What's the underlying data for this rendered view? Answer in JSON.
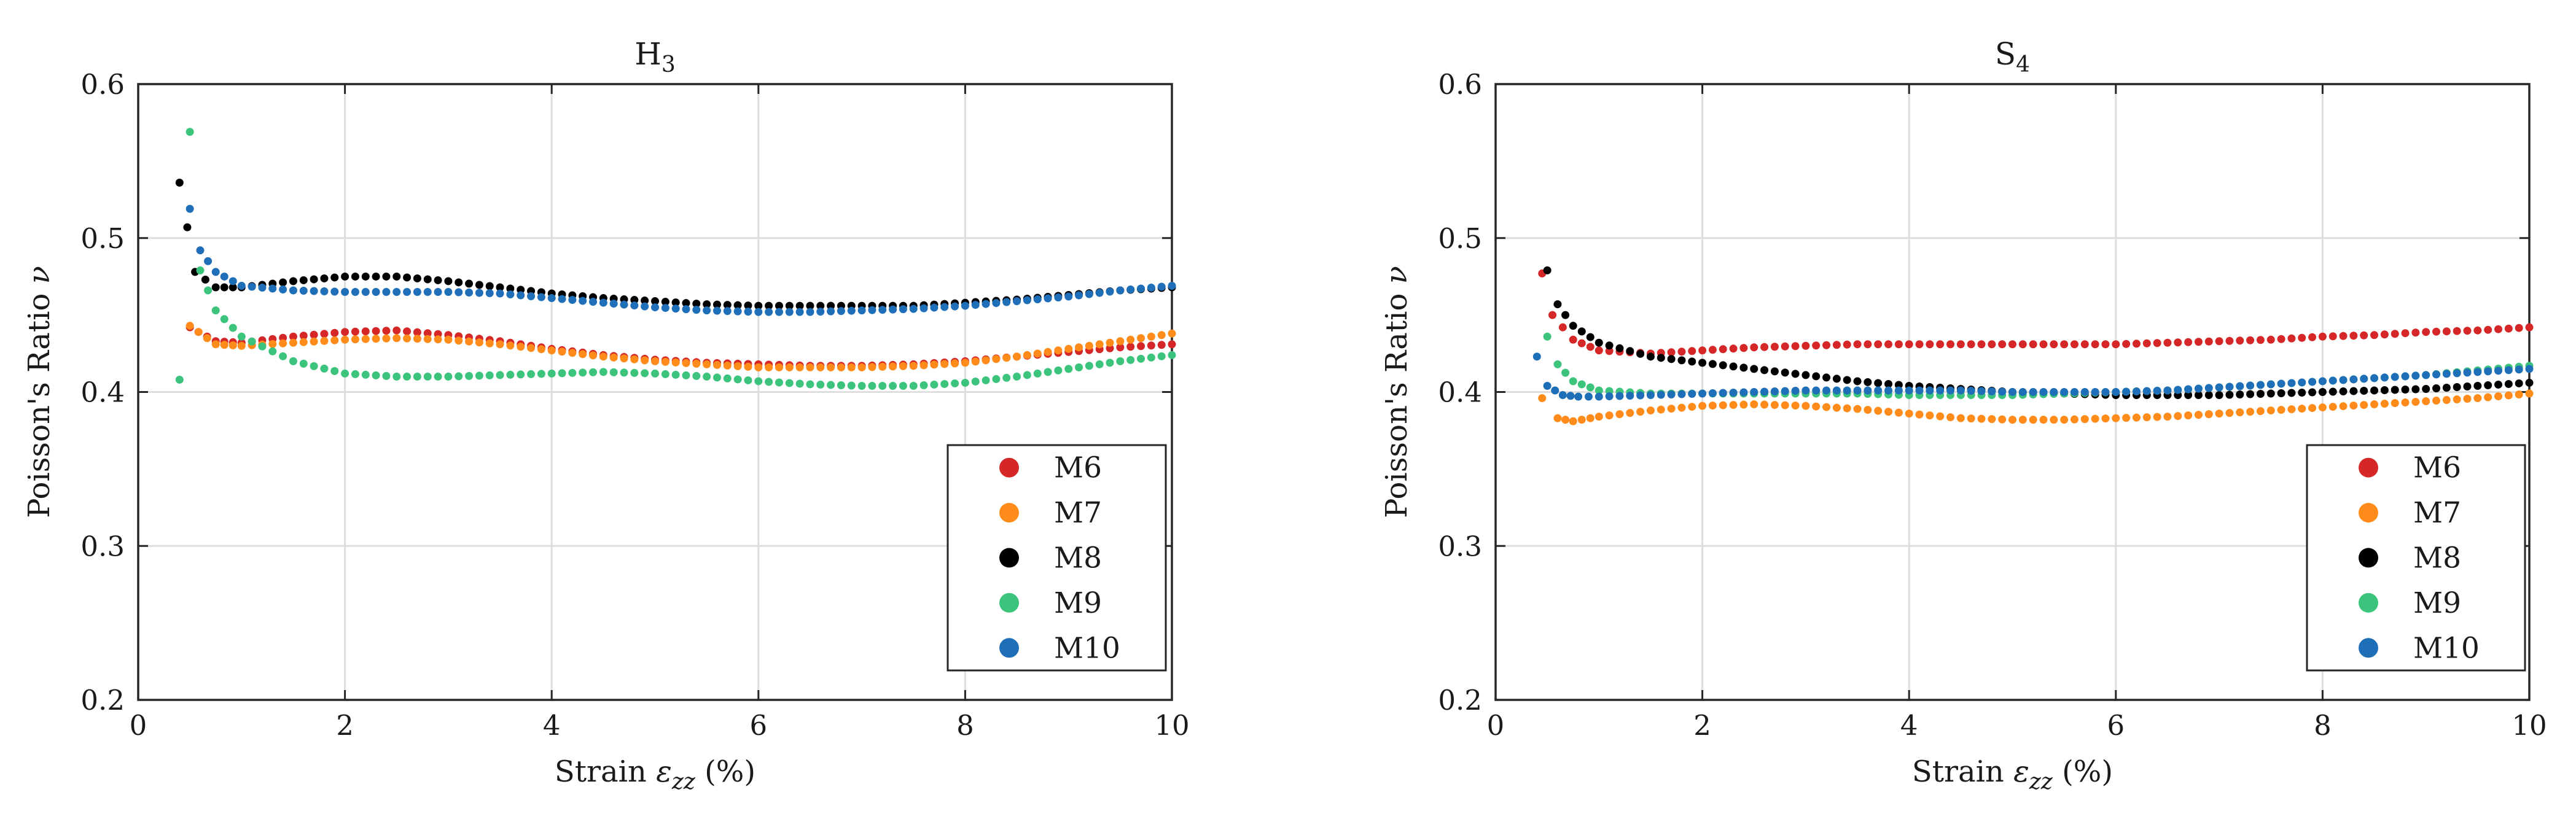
{
  "chart_data": [
    {
      "type": "scatter",
      "title_main": "H",
      "title_sub": "3",
      "xlabel_prefix": "Strain ",
      "xlabel_symbol": "ε",
      "xlabel_subscript": "zz",
      "xlabel_suffix": " (%)",
      "ylabel_prefix": "Poisson's Ratio ",
      "ylabel_symbol": "ν",
      "xlim": [
        0,
        10
      ],
      "ylim": [
        0.2,
        0.6
      ],
      "xticks": [
        "0",
        "2",
        "4",
        "6",
        "8",
        "10"
      ],
      "yticks": [
        "0.2",
        "0.3",
        "0.4",
        "0.5",
        "0.6"
      ],
      "grid": true,
      "legend_position": "bottom-right",
      "series": [
        {
          "name": "M6",
          "color": "#d62728",
          "x": [
            0.5,
            0.75,
            1,
            1.5,
            2,
            2.5,
            3,
            3.5,
            4,
            4.5,
            5,
            5.5,
            6,
            6.5,
            7,
            7.5,
            8,
            8.5,
            9,
            9.5,
            10
          ],
          "y": [
            0.442,
            0.433,
            0.432,
            0.436,
            0.439,
            0.44,
            0.437,
            0.433,
            0.428,
            0.424,
            0.421,
            0.419,
            0.418,
            0.417,
            0.417,
            0.418,
            0.42,
            0.423,
            0.426,
            0.429,
            0.431
          ]
        },
        {
          "name": "M7",
          "color": "#ff8c1a",
          "x": [
            0.5,
            0.75,
            1,
            1.5,
            2,
            2.5,
            3,
            3.5,
            4,
            4.5,
            5,
            5.5,
            6,
            6.5,
            7,
            7.5,
            8,
            8.5,
            9,
            9.5,
            10
          ],
          "y": [
            0.443,
            0.431,
            0.43,
            0.432,
            0.434,
            0.435,
            0.434,
            0.431,
            0.427,
            0.423,
            0.42,
            0.418,
            0.416,
            0.416,
            0.416,
            0.417,
            0.419,
            0.423,
            0.428,
            0.433,
            0.438
          ]
        },
        {
          "name": "M8",
          "color": "#000000",
          "x": [
            0.4,
            0.55,
            0.75,
            1,
            1.5,
            2,
            2.5,
            3,
            3.5,
            4,
            4.5,
            5,
            5.5,
            6,
            6.5,
            7,
            7.5,
            8,
            8.5,
            9,
            9.5,
            10
          ],
          "y": [
            0.536,
            0.478,
            0.468,
            0.468,
            0.472,
            0.475,
            0.475,
            0.472,
            0.468,
            0.464,
            0.461,
            0.459,
            0.457,
            0.456,
            0.456,
            0.456,
            0.456,
            0.458,
            0.46,
            0.463,
            0.466,
            0.468
          ]
        },
        {
          "name": "M9",
          "color": "#3cc47c",
          "x": [
            0.4,
            0.5,
            0.6,
            0.75,
            1,
            1.5,
            2,
            2.5,
            3,
            3.5,
            4,
            4.5,
            5,
            5.5,
            6,
            6.5,
            7,
            7.5,
            8,
            8.5,
            9,
            9.5,
            10
          ],
          "y": [
            0.408,
            0.569,
            0.479,
            0.453,
            0.436,
            0.42,
            0.412,
            0.41,
            0.41,
            0.411,
            0.412,
            0.413,
            0.412,
            0.41,
            0.407,
            0.405,
            0.404,
            0.404,
            0.406,
            0.41,
            0.415,
            0.42,
            0.424
          ]
        },
        {
          "name": "M10",
          "color": "#1f6fb8",
          "x": [
            0.5,
            0.6,
            0.75,
            1,
            1.5,
            2,
            2.5,
            3,
            3.5,
            4,
            4.5,
            5,
            5.5,
            6,
            6.5,
            7,
            7.5,
            8,
            8.5,
            9,
            9.5,
            10
          ],
          "y": [
            0.519,
            0.492,
            0.478,
            0.469,
            0.466,
            0.465,
            0.465,
            0.465,
            0.464,
            0.461,
            0.458,
            0.455,
            0.453,
            0.452,
            0.452,
            0.453,
            0.454,
            0.456,
            0.459,
            0.462,
            0.466,
            0.469
          ]
        }
      ]
    },
    {
      "type": "scatter",
      "title_main": "S",
      "title_sub": "4",
      "xlabel_prefix": "Strain ",
      "xlabel_symbol": "ε",
      "xlabel_subscript": "zz",
      "xlabel_suffix": " (%)",
      "ylabel_prefix": "Poisson's Ratio ",
      "ylabel_symbol": "ν",
      "xlim": [
        0,
        10
      ],
      "ylim": [
        0.2,
        0.6
      ],
      "xticks": [
        "0",
        "2",
        "4",
        "6",
        "8",
        "10"
      ],
      "yticks": [
        "0.2",
        "0.3",
        "0.4",
        "0.5",
        "0.6"
      ],
      "grid": true,
      "legend_position": "bottom-right",
      "series": [
        {
          "name": "M6",
          "color": "#d62728",
          "x": [
            0.45,
            0.55,
            0.75,
            1,
            1.5,
            2,
            2.5,
            3,
            3.5,
            4,
            4.5,
            5,
            5.5,
            6,
            6.5,
            7,
            7.5,
            8,
            8.5,
            9,
            9.5,
            10
          ],
          "y": [
            0.477,
            0.45,
            0.434,
            0.427,
            0.425,
            0.427,
            0.429,
            0.43,
            0.431,
            0.431,
            0.431,
            0.431,
            0.431,
            0.431,
            0.432,
            0.433,
            0.434,
            0.436,
            0.437,
            0.439,
            0.44,
            0.442
          ]
        },
        {
          "name": "M7",
          "color": "#ff8c1a",
          "x": [
            0.45,
            0.6,
            0.75,
            1,
            1.5,
            2,
            2.5,
            3,
            3.5,
            4,
            4.5,
            5,
            5.5,
            6,
            6.5,
            7,
            7.5,
            8,
            8.5,
            9,
            9.5,
            10
          ],
          "y": [
            0.396,
            0.383,
            0.381,
            0.384,
            0.388,
            0.391,
            0.392,
            0.391,
            0.389,
            0.386,
            0.383,
            0.382,
            0.382,
            0.383,
            0.384,
            0.386,
            0.388,
            0.39,
            0.392,
            0.394,
            0.396,
            0.399
          ]
        },
        {
          "name": "M8",
          "color": "#000000",
          "x": [
            0.5,
            0.6,
            0.75,
            1,
            1.5,
            2,
            2.5,
            3,
            3.5,
            4,
            4.5,
            5,
            5.5,
            6,
            6.5,
            7,
            7.5,
            8,
            8.5,
            9,
            9.5,
            10
          ],
          "y": [
            0.479,
            0.457,
            0.443,
            0.432,
            0.423,
            0.419,
            0.415,
            0.411,
            0.407,
            0.404,
            0.402,
            0.4,
            0.399,
            0.398,
            0.398,
            0.398,
            0.399,
            0.4,
            0.401,
            0.402,
            0.404,
            0.406
          ]
        },
        {
          "name": "M9",
          "color": "#3cc47c",
          "x": [
            0.5,
            0.6,
            0.75,
            1,
            1.5,
            2,
            2.5,
            3,
            3.5,
            4,
            4.5,
            5,
            5.5,
            6,
            6.5,
            7,
            7.5,
            8,
            8.5,
            9,
            9.5,
            10
          ],
          "y": [
            0.436,
            0.418,
            0.407,
            0.401,
            0.399,
            0.399,
            0.399,
            0.399,
            0.399,
            0.398,
            0.398,
            0.398,
            0.399,
            0.4,
            0.401,
            0.403,
            0.405,
            0.407,
            0.409,
            0.411,
            0.414,
            0.417
          ]
        },
        {
          "name": "M10",
          "color": "#1f6fb8",
          "x": [
            0.4,
            0.5,
            0.65,
            0.8,
            1,
            1.5,
            2,
            2.5,
            3,
            3.5,
            4,
            4.5,
            5,
            5.5,
            6,
            6.5,
            7,
            7.5,
            8,
            8.5,
            9,
            9.5,
            10
          ],
          "y": [
            0.423,
            0.404,
            0.398,
            0.397,
            0.397,
            0.398,
            0.399,
            0.4,
            0.401,
            0.401,
            0.401,
            0.401,
            0.4,
            0.4,
            0.4,
            0.401,
            0.403,
            0.405,
            0.407,
            0.409,
            0.411,
            0.413,
            0.415
          ]
        }
      ]
    }
  ]
}
